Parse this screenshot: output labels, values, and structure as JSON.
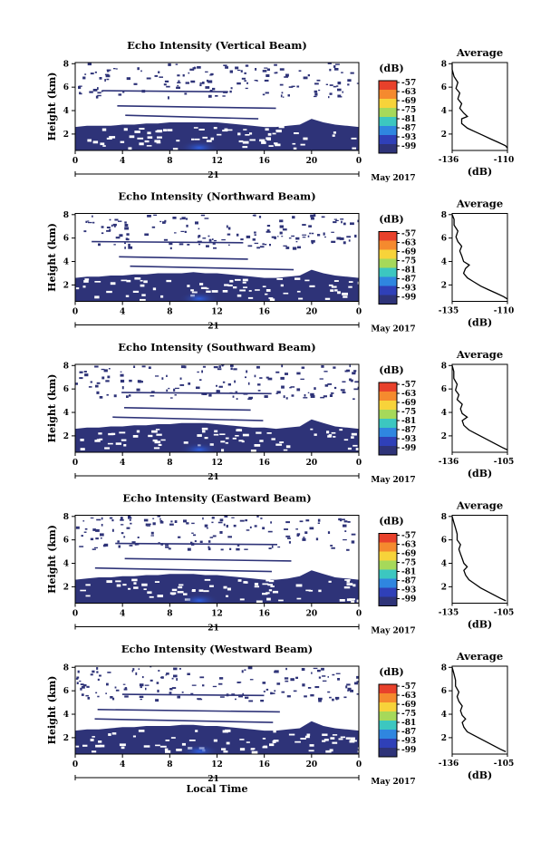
{
  "chart_data": [
    {
      "type": "heatmap",
      "title": "Echo Intensity (Vertical Beam)",
      "ylabel": "Height (km)",
      "yticks": [
        2,
        4,
        6,
        8
      ],
      "ylim": [
        0.6,
        8.1
      ],
      "xticks": [
        "0",
        "4",
        "8",
        "12",
        "16",
        "20",
        "0"
      ],
      "xlim": [
        0,
        24
      ],
      "date_label": "21",
      "month_label": "May 2017",
      "colorbar": {
        "unit": "(dB)",
        "levels": [
          "-57",
          "-63",
          "-69",
          "-75",
          "-81",
          "-87",
          "-93",
          "-99"
        ]
      },
      "echo_top_km": [
        2.6,
        2.7,
        2.7,
        2.7,
        2.8,
        2.8,
        2.9,
        2.9,
        3.0,
        3.0,
        3.0,
        3.0,
        3.0,
        2.9,
        2.8,
        2.7,
        2.6,
        2.6,
        2.7,
        2.8,
        3.3,
        3.0,
        2.8,
        2.7,
        2.6
      ],
      "profile": {
        "title": "Average",
        "xlabel": "(dB)",
        "xticks": [
          "-136",
          "-110"
        ],
        "xlim": [
          -136,
          -107
        ],
        "yticks": [
          2,
          4,
          6,
          8
        ],
        "points": [
          [
            -106,
            0.8
          ],
          [
            -108,
            1.0
          ],
          [
            -112,
            1.3
          ],
          [
            -116,
            1.6
          ],
          [
            -120,
            1.9
          ],
          [
            -124,
            2.2
          ],
          [
            -128,
            2.5
          ],
          [
            -131,
            2.9
          ],
          [
            -131,
            3.3
          ],
          [
            -128,
            3.5
          ],
          [
            -130,
            3.8
          ],
          [
            -132,
            4.2
          ],
          [
            -131,
            4.6
          ],
          [
            -133,
            5.0
          ],
          [
            -132,
            5.5
          ],
          [
            -134,
            5.9
          ],
          [
            -133,
            6.4
          ],
          [
            -135,
            6.9
          ],
          [
            -136,
            7.5
          ],
          [
            -137,
            8.0
          ]
        ]
      }
    },
    {
      "type": "heatmap",
      "title": "Echo Intensity (Northward Beam)",
      "ylabel": "Height (km)",
      "yticks": [
        2,
        4,
        6,
        8
      ],
      "ylim": [
        0.6,
        8.1
      ],
      "xticks": [
        "0",
        "4",
        "8",
        "12",
        "16",
        "20",
        "0"
      ],
      "xlim": [
        0,
        24
      ],
      "date_label": "21",
      "month_label": "May 2017",
      "colorbar": {
        "unit": "(dB)",
        "levels": [
          "-57",
          "-63",
          "-69",
          "-75",
          "-81",
          "-87",
          "-93",
          "-99"
        ]
      },
      "echo_top_km": [
        2.6,
        2.7,
        2.7,
        2.8,
        2.8,
        2.9,
        2.9,
        3.0,
        3.0,
        3.0,
        3.1,
        3.0,
        3.0,
        2.9,
        2.8,
        2.7,
        2.6,
        2.6,
        2.7,
        2.8,
        3.3,
        3.0,
        2.8,
        2.7,
        2.6
      ],
      "profile": {
        "title": "Average",
        "xlabel": "(dB)",
        "xticks": [
          "-135",
          "-110"
        ],
        "xlim": [
          -136,
          -107
        ],
        "yticks": [
          2,
          4,
          6,
          8
        ],
        "points": [
          [
            -107,
            0.8
          ],
          [
            -109,
            1.0
          ],
          [
            -113,
            1.3
          ],
          [
            -117,
            1.6
          ],
          [
            -121,
            1.9
          ],
          [
            -125,
            2.3
          ],
          [
            -128,
            2.6
          ],
          [
            -130,
            3.0
          ],
          [
            -129,
            3.4
          ],
          [
            -127,
            3.7
          ],
          [
            -130,
            4.0
          ],
          [
            -131,
            4.5
          ],
          [
            -132,
            4.9
          ],
          [
            -131,
            5.3
          ],
          [
            -133,
            5.7
          ],
          [
            -134,
            6.1
          ],
          [
            -133,
            6.6
          ],
          [
            -135,
            7.1
          ],
          [
            -135,
            7.6
          ],
          [
            -136,
            8.0
          ]
        ]
      }
    },
    {
      "type": "heatmap",
      "title": "Echo Intensity (Southward Beam)",
      "ylabel": "Height (km)",
      "yticks": [
        2,
        4,
        6,
        8
      ],
      "ylim": [
        0.6,
        8.1
      ],
      "xticks": [
        "0",
        "4",
        "8",
        "12",
        "16",
        "20",
        "0"
      ],
      "xlim": [
        0,
        24
      ],
      "date_label": "21",
      "month_label": "May 2017",
      "colorbar": {
        "unit": "(dB)",
        "levels": [
          "-57",
          "-63",
          "-69",
          "-75",
          "-81",
          "-87",
          "-93",
          "-99"
        ]
      },
      "echo_top_km": [
        2.6,
        2.7,
        2.7,
        2.8,
        2.8,
        2.9,
        2.9,
        3.0,
        3.0,
        3.1,
        3.1,
        3.1,
        3.0,
        2.9,
        2.8,
        2.7,
        2.7,
        2.6,
        2.7,
        2.8,
        3.4,
        3.1,
        2.8,
        2.7,
        2.6
      ],
      "profile": {
        "title": "Average",
        "xlabel": "(dB)",
        "xticks": [
          "-136",
          "-105"
        ],
        "xlim": [
          -137,
          -104
        ],
        "yticks": [
          2,
          4,
          6,
          8
        ],
        "points": [
          [
            -104,
            0.8
          ],
          [
            -107,
            1.0
          ],
          [
            -111,
            1.3
          ],
          [
            -115,
            1.6
          ],
          [
            -119,
            1.9
          ],
          [
            -123,
            2.2
          ],
          [
            -127,
            2.5
          ],
          [
            -130,
            2.9
          ],
          [
            -131,
            3.3
          ],
          [
            -128,
            3.6
          ],
          [
            -131,
            3.9
          ],
          [
            -132,
            4.3
          ],
          [
            -131,
            4.7
          ],
          [
            -134,
            5.1
          ],
          [
            -133,
            5.5
          ],
          [
            -135,
            5.9
          ],
          [
            -134,
            6.4
          ],
          [
            -136,
            6.9
          ],
          [
            -136,
            7.5
          ],
          [
            -137,
            8.0
          ]
        ]
      }
    },
    {
      "type": "heatmap",
      "title": "Echo Intensity (Eastward Beam)",
      "ylabel": "Height (km)",
      "yticks": [
        2,
        4,
        6,
        8
      ],
      "ylim": [
        0.6,
        8.1
      ],
      "xticks": [
        "0",
        "4",
        "8",
        "12",
        "16",
        "20",
        "0"
      ],
      "xlim": [
        0,
        24
      ],
      "date_label": "21",
      "month_label": "May 2017",
      "colorbar": {
        "unit": "(dB)",
        "levels": [
          "-57",
          "-63",
          "-69",
          "-75",
          "-81",
          "-87",
          "-93",
          "-99"
        ]
      },
      "echo_top_km": [
        2.6,
        2.7,
        2.8,
        2.8,
        2.9,
        2.9,
        3.0,
        3.0,
        3.1,
        3.1,
        3.1,
        3.0,
        3.0,
        2.9,
        2.8,
        2.7,
        2.6,
        2.6,
        2.7,
        2.9,
        3.4,
        3.1,
        2.8,
        2.7,
        2.6
      ],
      "profile": {
        "title": "Average",
        "xlabel": "(dB)",
        "xticks": [
          "-135",
          "-105"
        ],
        "xlim": [
          -137,
          -104
        ],
        "yticks": [
          2,
          4,
          6,
          8
        ],
        "points": [
          [
            -105,
            0.8
          ],
          [
            -108,
            1.0
          ],
          [
            -112,
            1.3
          ],
          [
            -116,
            1.6
          ],
          [
            -120,
            1.9
          ],
          [
            -124,
            2.3
          ],
          [
            -127,
            2.6
          ],
          [
            -129,
            3.0
          ],
          [
            -130,
            3.4
          ],
          [
            -128,
            3.7
          ],
          [
            -130,
            4.0
          ],
          [
            -131,
            4.4
          ],
          [
            -132,
            4.8
          ],
          [
            -133,
            5.2
          ],
          [
            -132,
            5.6
          ],
          [
            -134,
            6.0
          ],
          [
            -134,
            6.5
          ],
          [
            -135,
            7.0
          ],
          [
            -136,
            7.5
          ],
          [
            -137,
            8.0
          ]
        ]
      }
    },
    {
      "type": "heatmap",
      "title": "Echo Intensity (Westward Beam)",
      "ylabel": "Height (km)",
      "yticks": [
        2,
        4,
        6,
        8
      ],
      "ylim": [
        0.6,
        8.1
      ],
      "xticks": [
        "0",
        "4",
        "8",
        "12",
        "16",
        "20",
        "0"
      ],
      "xlim": [
        0,
        24
      ],
      "date_label": "21",
      "month_label": "May 2017",
      "xlabel": "Local Time",
      "colorbar": {
        "unit": "(dB)",
        "levels": [
          "-57",
          "-63",
          "-69",
          "-75",
          "-81",
          "-87",
          "-93",
          "-99"
        ]
      },
      "echo_top_km": [
        2.6,
        2.7,
        2.7,
        2.8,
        2.9,
        2.9,
        3.0,
        3.0,
        3.0,
        3.1,
        3.1,
        3.0,
        3.0,
        2.9,
        2.8,
        2.7,
        2.6,
        2.6,
        2.7,
        2.8,
        3.4,
        3.0,
        2.8,
        2.7,
        2.6
      ],
      "profile": {
        "title": "Average",
        "xlabel": "(dB)",
        "xticks": [
          "-136",
          "-105"
        ],
        "xlim": [
          -137,
          -104
        ],
        "yticks": [
          2,
          4,
          6,
          8
        ],
        "points": [
          [
            -105,
            0.8
          ],
          [
            -108,
            1.0
          ],
          [
            -112,
            1.3
          ],
          [
            -116,
            1.6
          ],
          [
            -120,
            1.9
          ],
          [
            -124,
            2.2
          ],
          [
            -128,
            2.5
          ],
          [
            -130,
            2.9
          ],
          [
            -131,
            3.3
          ],
          [
            -129,
            3.6
          ],
          [
            -131,
            3.9
          ],
          [
            -132,
            4.3
          ],
          [
            -131,
            4.7
          ],
          [
            -133,
            5.1
          ],
          [
            -134,
            5.5
          ],
          [
            -133,
            5.9
          ],
          [
            -135,
            6.4
          ],
          [
            -135,
            6.9
          ],
          [
            -136,
            7.5
          ],
          [
            -137,
            8.0
          ]
        ]
      }
    }
  ],
  "colors": {
    "colorbar": [
      "#e8412b",
      "#f58a2e",
      "#f7d33a",
      "#a6d95a",
      "#3cc7c0",
      "#2f86e0",
      "#2f40b8",
      "#2e3378"
    ],
    "echo_fill": "#2e3378",
    "echo_core": "#2f40b8"
  }
}
